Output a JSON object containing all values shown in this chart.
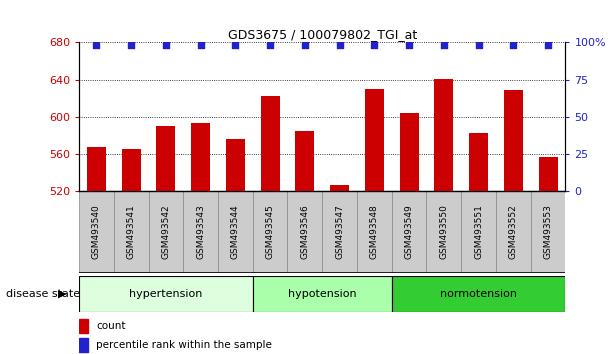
{
  "title": "GDS3675 / 100079802_TGI_at",
  "categories": [
    "GSM493540",
    "GSM493541",
    "GSM493542",
    "GSM493543",
    "GSM493544",
    "GSM493545",
    "GSM493546",
    "GSM493547",
    "GSM493548",
    "GSM493549",
    "GSM493550",
    "GSM493551",
    "GSM493552",
    "GSM493553"
  ],
  "count_values": [
    568,
    565,
    590,
    593,
    576,
    622,
    585,
    527,
    630,
    604,
    641,
    583,
    629,
    557
  ],
  "percentile_values": [
    98,
    98,
    98,
    98,
    98,
    98,
    98,
    98,
    98,
    98,
    98,
    98,
    98,
    98
  ],
  "ylim_left": [
    520,
    680
  ],
  "ylim_right": [
    0,
    100
  ],
  "yticks_left": [
    520,
    560,
    600,
    640,
    680
  ],
  "yticks_right": [
    0,
    25,
    50,
    75,
    100
  ],
  "bar_color": "#cc0000",
  "dot_color": "#2222cc",
  "bar_bottom": 520,
  "hypertension_indices": [
    0,
    1,
    2,
    3,
    4
  ],
  "hypotension_indices": [
    5,
    6,
    7,
    8
  ],
  "normotension_indices": [
    9,
    10,
    11,
    12,
    13
  ],
  "group_hypertension_color": "#ddffdd",
  "group_hypotension_color": "#aaffaa",
  "group_normotension_color": "#33cc33",
  "legend_count_label": "count",
  "legend_pct_label": "percentile rank within the sample",
  "disease_state_label": "disease state",
  "tick_bg_color": "#cccccc",
  "spine_color": "#000000"
}
